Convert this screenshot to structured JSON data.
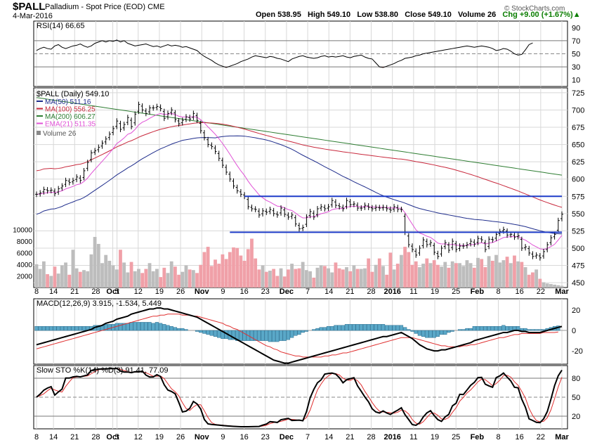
{
  "header": {
    "symbol": "$PALL",
    "description": "Palladium - Spot Price (EOD)",
    "exchange": "CME",
    "date": "4-Mar-2016",
    "open": "Open 538.95",
    "high": "High 549.10",
    "low": "Low 538.80",
    "close": "Close 549.10",
    "volume": "Volume 26",
    "change": "Chg +9.00 (+1.67%)",
    "change_arrow": "▲",
    "credit": "© StockCharts.com"
  },
  "colors": {
    "bar": "#000000",
    "ma50": "#1f2d8c",
    "ma100": "#c8283c",
    "ma200": "#2e7d32",
    "ema21": "#e052d6",
    "volume_up": "#bdbdbd",
    "volume_down": "#f0a0a8",
    "support_line": "#1e3cc8",
    "macd": "#000000",
    "macd_signal": "#e03030",
    "macd_hist": "#5aa8c8",
    "sto_k": "#000000",
    "sto_d": "#e03030",
    "rsi_overbought_fill": "#3a6fd0",
    "rsi_oversold_fill": "#c0484a"
  },
  "chart_data": [
    {
      "type": "line",
      "panel": "rsi",
      "title": "RSI(14) 66.65",
      "ylim": [
        0,
        100
      ],
      "yticks": [
        10,
        30,
        50,
        70,
        90
      ],
      "values": [
        55,
        58,
        60,
        58,
        57,
        62,
        64,
        60,
        58,
        60,
        62,
        63,
        65,
        62,
        60,
        62,
        66,
        68,
        70,
        68,
        70,
        69,
        71,
        68,
        70,
        66,
        64,
        62,
        63,
        64,
        65,
        63,
        61,
        62,
        60,
        62,
        64,
        62,
        63,
        62,
        60,
        61,
        59,
        57,
        55,
        50,
        46,
        43,
        40,
        36,
        33,
        31,
        29,
        31,
        33,
        35,
        38,
        40,
        42,
        45,
        47,
        46,
        45,
        44,
        46,
        45,
        43,
        42,
        40,
        38,
        42,
        44,
        46,
        47,
        45,
        44,
        43,
        44,
        46,
        47,
        45,
        46,
        45,
        46,
        47,
        45,
        44,
        46,
        47,
        48,
        45,
        43,
        42,
        36,
        30,
        29,
        31,
        33,
        35,
        38,
        40,
        43,
        44,
        45,
        47,
        48,
        50,
        51,
        52,
        53,
        54,
        55,
        56,
        57,
        58,
        59,
        60,
        61,
        62,
        61,
        60,
        61,
        62,
        61,
        60,
        58,
        55,
        56,
        58,
        57,
        54,
        50,
        48,
        49,
        56,
        64,
        66.65
      ],
      "series_name": "RSI(14)",
      "last_value": 66.65
    },
    {
      "type": "ohlc",
      "panel": "price",
      "title": "$PALL (Daily) 549.10",
      "ylim": [
        443,
        732
      ],
      "yticks": [
        450,
        475,
        500,
        525,
        550,
        575,
        600,
        625,
        650,
        675,
        700,
        725
      ],
      "close": [
        578,
        580,
        585,
        583,
        584,
        579,
        586,
        590,
        598,
        595,
        598,
        603,
        598,
        612,
        624,
        638,
        641,
        646,
        652,
        658,
        665,
        673,
        684,
        672,
        679,
        689,
        676,
        694,
        708,
        700,
        695,
        703,
        703,
        705,
        702,
        688,
        695,
        700,
        686,
        680,
        685,
        690,
        687,
        695,
        685,
        670,
        660,
        650,
        647,
        640,
        630,
        620,
        610,
        600,
        590,
        583,
        578,
        575,
        560,
        557,
        556,
        548,
        554,
        552,
        556,
        550,
        548,
        558,
        549,
        545,
        548,
        535,
        528,
        530,
        545,
        553,
        545,
        557,
        560,
        557,
        560,
        569,
        562,
        560,
        557,
        569,
        563,
        564,
        558,
        558,
        562,
        559,
        557,
        559,
        558,
        559,
        557,
        555,
        560,
        556,
        556,
        523,
        505,
        498,
        490,
        500,
        512,
        505,
        508,
        494,
        488,
        500,
        508,
        497,
        510,
        498,
        503,
        503,
        505,
        510,
        506,
        514,
        512,
        498,
        513,
        512,
        520,
        524,
        527,
        519,
        520,
        516,
        518,
        500,
        502,
        493,
        488,
        490,
        486,
        495,
        505,
        515,
        520,
        540,
        549.1
      ],
      "ma": [
        {
          "name": "MA(50) 511.16",
          "last_value": 511.16
        },
        {
          "name": "MA(100) 556.25",
          "last_value": 556.25
        },
        {
          "name": "MA(200) 606.27",
          "last_value": 606.27
        },
        {
          "name": "EMA(21) 511.35",
          "last_value": 511.35
        }
      ],
      "volume_label": "Volume 26",
      "volume_ylim": [
        0,
        11000
      ],
      "volume_ticks": [
        2000,
        4000,
        6000,
        8000,
        10000
      ],
      "volume": [
        4000,
        3200,
        4500,
        2300,
        2000,
        3600,
        2400,
        3800,
        4300,
        2200,
        6500,
        3300,
        2700,
        3000,
        2800,
        5700,
        8700,
        7500,
        4200,
        5600,
        4600,
        3800,
        3100,
        6500,
        4300,
        2600,
        4400,
        2800,
        3200,
        2500,
        3200,
        4200,
        2800,
        3200,
        1800,
        3400,
        2500,
        4500,
        3600,
        2200,
        2700,
        3800,
        3100,
        3000,
        2500,
        3900,
        6100,
        7000,
        3700,
        4800,
        4100,
        5700,
        4900,
        6100,
        6900,
        6800,
        5500,
        4600,
        6600,
        8400,
        5000,
        3100,
        3800,
        2700,
        2900,
        3200,
        2000,
        3300,
        1900,
        3100,
        4100,
        3200,
        3300,
        4400,
        3000,
        2800,
        1700,
        3400,
        3800,
        3700,
        3300,
        2600,
        4300,
        3300,
        3100,
        3500,
        2800,
        3800,
        3200,
        3200,
        3300,
        5000,
        2700,
        3900,
        5000,
        3700,
        2200,
        6000,
        3100,
        4100,
        5600,
        7000,
        6100,
        3900,
        4500,
        3500,
        4100,
        5000,
        4200,
        4700,
        3900,
        3600,
        4400,
        3400,
        4500,
        4200,
        4200,
        3700,
        4700,
        4200,
        3400,
        5100,
        4900,
        3500,
        5400,
        4600,
        5600,
        4300,
        4700,
        5300,
        4200,
        5500,
        4500,
        4400,
        3500,
        2200,
        2600,
        3100,
        1500,
        900,
        700,
        600,
        500,
        400,
        300
      ],
      "support_lines": [
        {
          "label": "resistance",
          "value": 575
        },
        {
          "label": "support",
          "value": 523
        }
      ]
    },
    {
      "type": "line",
      "panel": "macd",
      "title": "MACD(12,26,9) 3.915, -1.534, 5.449",
      "ylim": [
        -33,
        31
      ],
      "yticks": [
        -20,
        0,
        20
      ],
      "series": [
        {
          "name": "MACD(12,26,9)",
          "last_value": 3.915
        },
        {
          "name": "Signal",
          "last_value": -1.534
        },
        {
          "name": "Histogram",
          "last_value": 5.449
        }
      ],
      "macd_values": [
        -14,
        -13,
        -12,
        -11,
        -10,
        -9,
        -8,
        -7,
        -6,
        -5,
        -4,
        -3,
        -2,
        -1,
        0,
        1,
        3,
        4,
        5,
        7,
        8,
        9,
        11,
        12,
        13,
        14,
        16,
        17,
        18,
        19,
        20,
        21,
        21,
        22,
        22,
        21,
        21,
        20,
        19,
        18,
        17,
        16,
        15,
        14,
        13,
        11,
        9,
        7,
        5,
        3,
        1,
        -1,
        -3,
        -5,
        -7,
        -9,
        -11,
        -13,
        -15,
        -17,
        -19,
        -21,
        -23,
        -25,
        -27,
        -29,
        -30,
        -31,
        -32,
        -32,
        -31,
        -30,
        -29,
        -28,
        -27,
        -26,
        -25,
        -24,
        -23,
        -22,
        -21,
        -20,
        -19,
        -18,
        -17,
        -16,
        -15,
        -14,
        -13,
        -12,
        -11,
        -10,
        -9,
        -8,
        -7,
        -6,
        -6,
        -5,
        -4,
        -3,
        -2,
        -4,
        -6,
        -8,
        -11,
        -14,
        -16,
        -18,
        -19,
        -20,
        -20,
        -19,
        -19,
        -18,
        -17,
        -16,
        -15,
        -14,
        -13,
        -12,
        -10,
        -9,
        -8,
        -7,
        -6,
        -5,
        -4,
        -3,
        -2,
        -2,
        -1,
        0,
        0,
        -1,
        -1,
        -2,
        -2,
        -2,
        -2,
        -1,
        0,
        1,
        2,
        3,
        3.915
      ],
      "signal_values": [
        -18,
        -17,
        -16,
        -15,
        -14,
        -13,
        -12,
        -11,
        -10,
        -9,
        -8,
        -7,
        -6,
        -5,
        -4,
        -3,
        -2,
        -1,
        0,
        1,
        2,
        3,
        4,
        5,
        6,
        7,
        8,
        9,
        10,
        11,
        12,
        13,
        14,
        14,
        15,
        15,
        16,
        16,
        16,
        16,
        15,
        15,
        15,
        14,
        14,
        13,
        12,
        11,
        10,
        9,
        8,
        7,
        5,
        4,
        2,
        1,
        -1,
        -3,
        -5,
        -7,
        -9,
        -11,
        -13,
        -15,
        -16,
        -18,
        -19,
        -21,
        -22,
        -23,
        -24,
        -25,
        -25,
        -26,
        -26,
        -26,
        -26,
        -26,
        -26,
        -25,
        -25,
        -24,
        -24,
        -23,
        -22,
        -22,
        -21,
        -20,
        -19,
        -18,
        -17,
        -16,
        -15,
        -14,
        -13,
        -12,
        -11,
        -10,
        -9,
        -8,
        -7,
        -7,
        -7,
        -7,
        -8,
        -9,
        -10,
        -11,
        -12,
        -13,
        -14,
        -15,
        -15,
        -16,
        -16,
        -16,
        -16,
        -15,
        -15,
        -14,
        -14,
        -13,
        -12,
        -11,
        -10,
        -9,
        -8,
        -7,
        -7,
        -6,
        -5,
        -4,
        -4,
        -3,
        -3,
        -3,
        -3,
        -3,
        -3,
        -2,
        -2,
        -2,
        -2,
        -1.534
      ]
    },
    {
      "type": "line",
      "panel": "sto",
      "title": "Slow STO %K(14) %D(3) 91.41, 77.09",
      "ylim": [
        0,
        100
      ],
      "yticks": [
        20,
        50,
        80
      ],
      "series": [
        {
          "name": "%K(14)",
          "last_value": 91.41
        },
        {
          "name": "%D(3)",
          "last_value": 77.09
        }
      ]
    },
    {
      "type": "axis",
      "panel": "x-axis",
      "tick_labels": [
        "8",
        "14",
        "21",
        "28",
        "Oct",
        "5",
        "12",
        "19",
        "26",
        "Nov",
        "9",
        "16",
        "23",
        "Dec",
        "7",
        "14",
        "21",
        "28",
        "2016",
        "11",
        "19",
        "25",
        "Feb",
        "8",
        "16",
        "22",
        "Mar"
      ],
      "tick_labels_bold": [
        "Oct",
        "Nov",
        "Dec",
        "2016",
        "Feb",
        "Mar"
      ]
    }
  ]
}
